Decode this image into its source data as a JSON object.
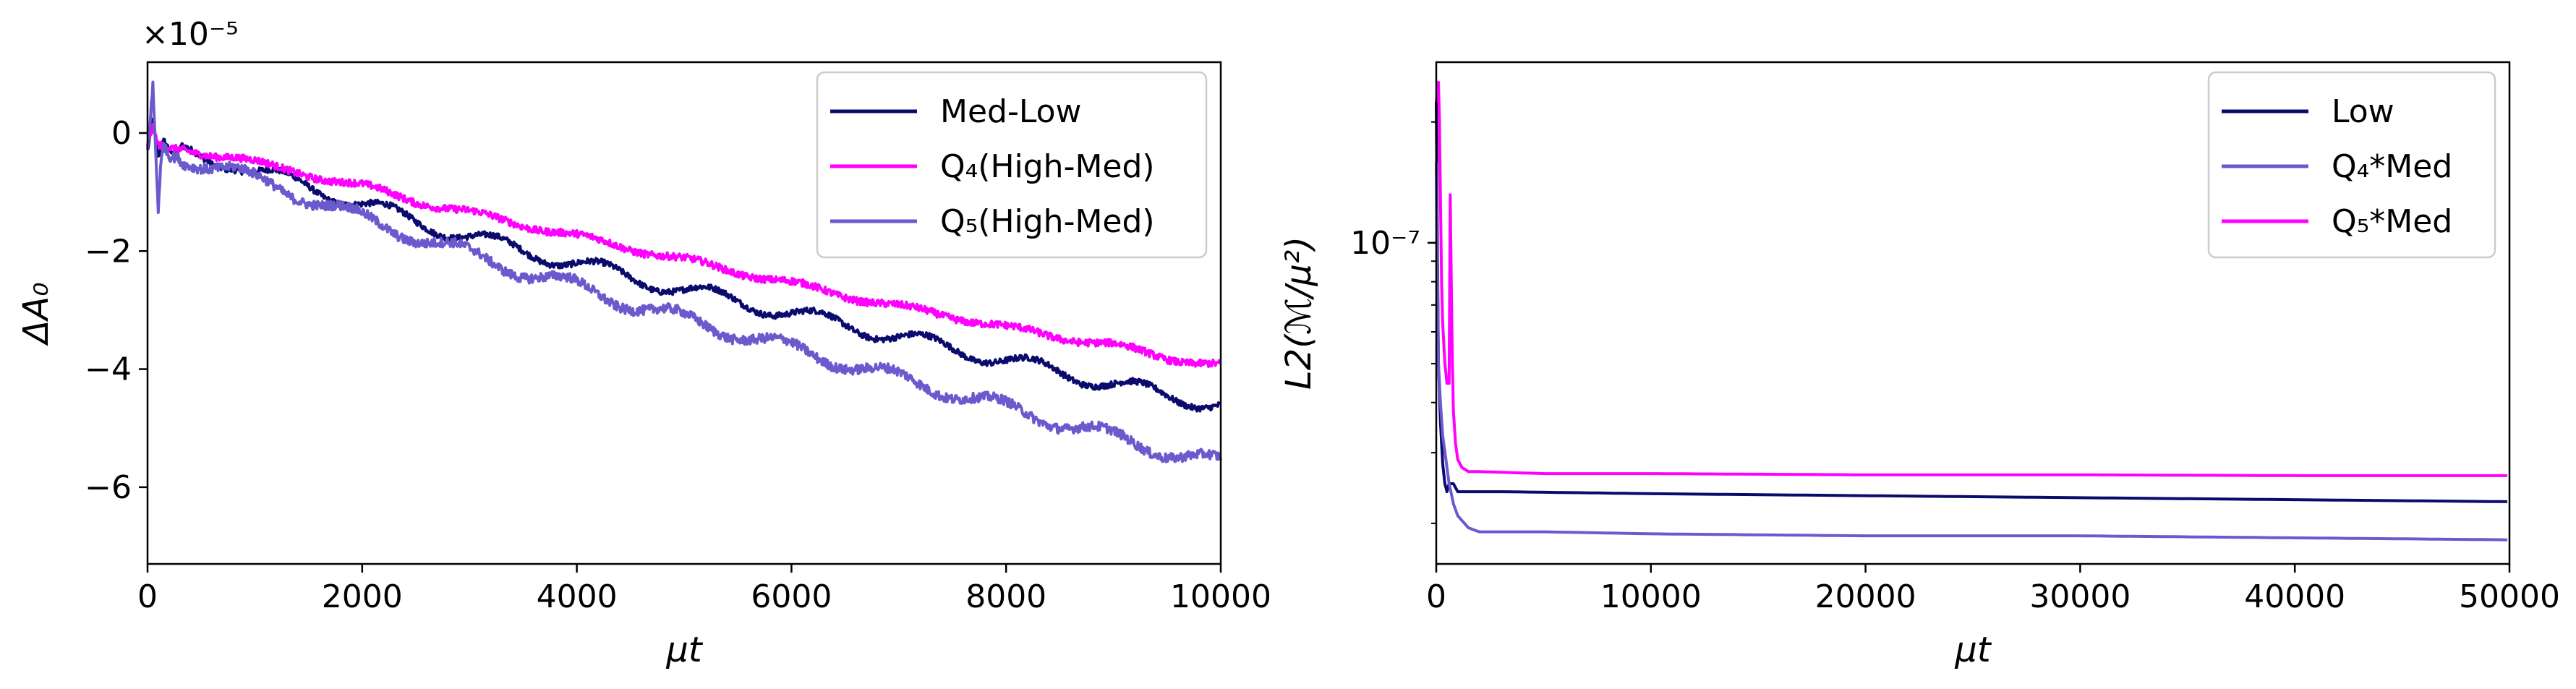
{
  "chart_data": [
    {
      "type": "line",
      "xlabel": "μt",
      "ylabel": "ΔA₀",
      "offset_text": "×10⁻⁵",
      "xlim": [
        0,
        10000
      ],
      "ylim": [
        -7.3,
        1.2
      ],
      "xticks": [
        0,
        2000,
        4000,
        6000,
        8000,
        10000
      ],
      "xtick_labels": [
        "0",
        "2000",
        "4000",
        "6000",
        "8000",
        "10000"
      ],
      "yticks": [
        0,
        -2,
        -4,
        -6
      ],
      "ytick_labels": [
        "0",
        "−2",
        "−4",
        "−6"
      ],
      "legend_position": "top-right",
      "series": [
        {
          "name": "Med-Low",
          "color": "#0b0b6e",
          "x": [
            0,
            50,
            100,
            150,
            200,
            400,
            600,
            800,
            1000,
            1200,
            1500,
            2000,
            2500,
            3000,
            3500,
            4000,
            4500,
            5000,
            5500,
            6000,
            6500,
            7000,
            7500,
            8000,
            8500,
            9000,
            9500,
            10000
          ],
          "y": [
            -0.3,
            0.2,
            -0.4,
            -0.1,
            -0.3,
            -0.35,
            -0.45,
            -0.5,
            -0.65,
            -0.75,
            -0.9,
            -1.2,
            -1.5,
            -1.75,
            -2.0,
            -2.2,
            -2.45,
            -2.65,
            -2.85,
            -3.05,
            -3.25,
            -3.45,
            -3.65,
            -3.85,
            -4.05,
            -4.25,
            -4.45,
            -4.6
          ],
          "noise": 0.05,
          "wave": 0.13
        },
        {
          "name": "Q₄(High-Med)",
          "color": "#ff00ff",
          "x": [
            0,
            50,
            100,
            200,
            400,
            600,
            800,
            1000,
            1200,
            1500,
            2000,
            2500,
            3000,
            3500,
            4000,
            4500,
            5000,
            5500,
            6000,
            6500,
            7000,
            7500,
            8000,
            8500,
            9000,
            9500,
            10000
          ],
          "y": [
            -0.2,
            0.1,
            -0.2,
            -0.25,
            -0.3,
            -0.35,
            -0.4,
            -0.5,
            -0.6,
            -0.7,
            -0.9,
            -1.15,
            -1.35,
            -1.55,
            -1.75,
            -1.95,
            -2.15,
            -2.35,
            -2.55,
            -2.75,
            -2.95,
            -3.1,
            -3.3,
            -3.45,
            -3.6,
            -3.8,
            -3.95
          ],
          "noise": 0.06,
          "wave": 0.05
        },
        {
          "name": "Q₅(High-Med)",
          "color": "#6a5acd",
          "x": [
            0,
            50,
            80,
            100,
            120,
            150,
            200,
            400,
            600,
            800,
            1000,
            1200,
            1500,
            2000,
            2500,
            3000,
            3500,
            4000,
            4500,
            5000,
            5500,
            6000,
            6500,
            7000,
            7500,
            8000,
            8500,
            9000,
            9500,
            10000
          ],
          "y": [
            -0.3,
            0.8,
            -0.5,
            -1.3,
            -0.6,
            -0.2,
            -0.4,
            -0.45,
            -0.55,
            -0.65,
            -0.8,
            -0.9,
            -1.1,
            -1.45,
            -1.75,
            -2.05,
            -2.35,
            -2.6,
            -2.9,
            -3.15,
            -3.4,
            -3.65,
            -3.9,
            -4.15,
            -4.4,
            -4.65,
            -4.9,
            -5.15,
            -5.4,
            -5.6
          ],
          "noise": 0.08,
          "wave": 0.12
        }
      ]
    },
    {
      "type": "line",
      "xlabel": "μt",
      "ylabel": "L2(ℳ/μ²)",
      "yscale": "log",
      "xlim": [
        0,
        50000
      ],
      "ylim_log10": [
        -7.8,
        -6.55
      ],
      "xticks": [
        0,
        10000,
        20000,
        30000,
        40000,
        50000
      ],
      "xtick_labels": [
        "0",
        "10000",
        "20000",
        "30000",
        "40000",
        "50000"
      ],
      "ytick_labels": [
        "10⁻⁷"
      ],
      "ytick_log10": [
        -7
      ],
      "legend_position": "top-right",
      "series": [
        {
          "name": "Low",
          "color": "#0b0b6e",
          "x": [
            0,
            100,
            200,
            300,
            400,
            500,
            600,
            800,
            1000,
            1500,
            3000,
            10000,
            20000,
            30000,
            40000,
            50000
          ],
          "y_log10": [
            -6.65,
            -7.3,
            -7.45,
            -7.55,
            -7.6,
            -7.62,
            -7.6,
            -7.6,
            -7.62,
            -7.62,
            -7.62,
            -7.625,
            -7.63,
            -7.635,
            -7.64,
            -7.645
          ]
        },
        {
          "name": "Q₄*Med",
          "color": "#6a5acd",
          "x": [
            0,
            100,
            200,
            300,
            400,
            600,
            800,
            1000,
            1500,
            2000,
            5000,
            10000,
            20000,
            30000,
            40000,
            50000
          ],
          "y_log10": [
            -6.8,
            -7.3,
            -7.4,
            -7.48,
            -7.52,
            -7.6,
            -7.65,
            -7.68,
            -7.71,
            -7.72,
            -7.72,
            -7.725,
            -7.73,
            -7.73,
            -7.735,
            -7.74
          ]
        },
        {
          "name": "Q₅*Med",
          "color": "#ff00ff",
          "x": [
            0,
            100,
            150,
            200,
            250,
            300,
            400,
            500,
            600,
            650,
            700,
            750,
            800,
            900,
            1000,
            1200,
            1500,
            2000,
            5000,
            10000,
            20000,
            30000,
            40000,
            50000
          ],
          "y_log10": [
            -6.65,
            -6.6,
            -6.7,
            -6.9,
            -7.1,
            -7.2,
            -7.3,
            -7.35,
            -7.35,
            -6.88,
            -7.1,
            -7.3,
            -7.42,
            -7.5,
            -7.54,
            -7.56,
            -7.57,
            -7.57,
            -7.575,
            -7.575,
            -7.578,
            -7.578,
            -7.58,
            -7.58
          ]
        }
      ]
    }
  ]
}
